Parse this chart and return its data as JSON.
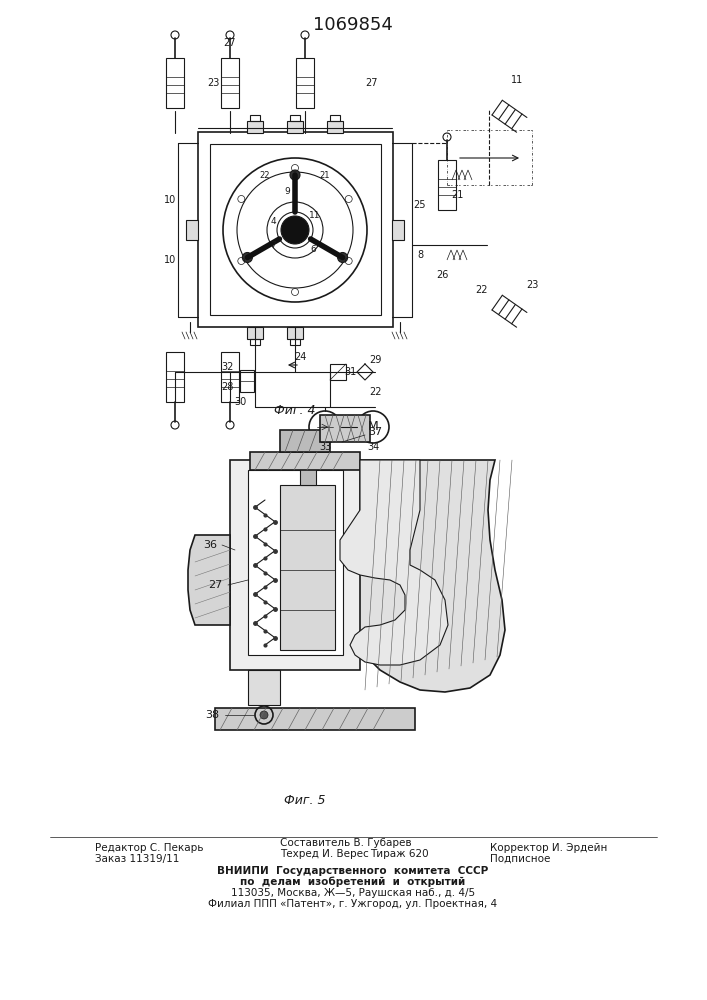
{
  "title": "1069854",
  "title_fontsize": 13,
  "fig1_label": "Фиг. 4",
  "fig2_label": "Фиг. 5",
  "background_color": "#ffffff",
  "line_color": "#1a1a1a",
  "footer_fontsize": 7.5,
  "footer_row1_left": "Редактор С. Пекарь",
  "footer_row1_mid_top": "Составитель В. Губарев",
  "footer_row1_right": "Корректор И. Эрдейн",
  "footer_row2_left": "Заказ 11319/11",
  "footer_row2_mid": "Техред И. Верес",
  "footer_row2_mid2": "Тираж 620",
  "footer_row2_right": "Подписное",
  "footer_line3": "ВНИИПИ  Государственного  комитета  СССР",
  "footer_line4": "по  делам  изобретений  и  открытий",
  "footer_line5": "113035, Москва, Ж—5, Раушская наб., д. 4/5",
  "footer_line6": "Филиал ППП «Патент», г. Ужгород, ул. Проектная, 4"
}
